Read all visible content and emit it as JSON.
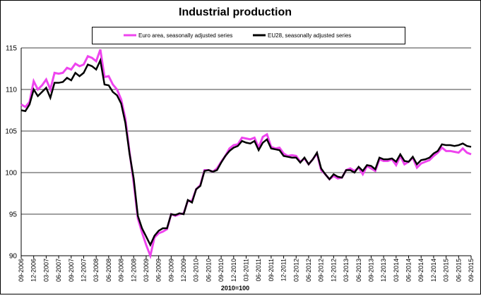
{
  "chart_data": {
    "type": "line",
    "title": "Industrial production",
    "x_label": "2010=100",
    "categories": [
      "09-2006",
      null,
      null,
      "12-2006",
      null,
      null,
      "03-2007",
      null,
      null,
      "06-2007",
      null,
      null,
      "09-2007",
      null,
      null,
      "12-2007",
      null,
      null,
      "03-2008",
      null,
      null,
      "06-2008",
      null,
      null,
      "09-2008",
      null,
      null,
      "12-2008",
      null,
      null,
      "03-2009",
      null,
      null,
      "06-2009",
      null,
      null,
      "09-2009",
      null,
      null,
      "12-2009",
      null,
      null,
      "03-2010",
      null,
      null,
      "06-2010",
      null,
      null,
      "09-2010",
      null,
      null,
      "12-2010",
      null,
      null,
      "03-2011",
      null,
      null,
      "06-2011",
      null,
      null,
      "09-2011",
      null,
      null,
      "12-2011",
      null,
      null,
      "03-2012",
      null,
      null,
      "06-2012",
      null,
      null,
      "09-2012",
      null,
      null,
      "12-2012",
      null,
      null,
      "03-2013",
      null,
      null,
      "06-2013",
      null,
      null,
      "09-2013",
      null,
      null,
      "12-2013",
      null,
      null,
      "03-2014",
      null,
      null,
      "06-2014",
      null,
      null,
      "09-2014",
      null,
      null,
      "12-2014",
      null,
      null,
      "03-2015",
      null,
      null,
      "06-2015",
      null,
      null,
      "09-2015"
    ],
    "series": [
      {
        "name": "Euro area, seasonally adjusted series",
        "color": "#ee44ee",
        "values": [
          108.2,
          107.9,
          108.5,
          111.0,
          110.0,
          110.5,
          111.2,
          110.0,
          112.0,
          111.9,
          112.0,
          112.6,
          112.4,
          113.1,
          112.8,
          113.0,
          114.0,
          113.8,
          113.4,
          114.8,
          111.5,
          111.6,
          110.6,
          110.0,
          108.8,
          106.5,
          102.5,
          98.8,
          94.5,
          92.8,
          91.3,
          90.0,
          92.2,
          92.7,
          92.9,
          93.2,
          95.0,
          94.8,
          95.0,
          95.1,
          96.6,
          96.6,
          98.0,
          98.5,
          100.3,
          100.3,
          100.1,
          100.5,
          101.3,
          102.0,
          102.9,
          103.3,
          103.4,
          104.2,
          104.1,
          104.0,
          104.2,
          103.0,
          104.3,
          104.6,
          103.1,
          102.9,
          103.0,
          102.3,
          102.0,
          102.1,
          102.0,
          101.3,
          101.7,
          101.0,
          101.6,
          102.3,
          100.3,
          99.8,
          99.2,
          99.6,
          99.3,
          99.4,
          100.3,
          100.5,
          100.2,
          100.6,
          99.8,
          100.8,
          100.5,
          100.2,
          101.6,
          101.4,
          101.4,
          101.6,
          100.9,
          102.0,
          101.0,
          101.3,
          101.8,
          100.6,
          101.1,
          101.3,
          101.5,
          102.0,
          102.4,
          103.0,
          102.6,
          102.6,
          102.5,
          102.4,
          102.9,
          102.4,
          102.2
        ]
      },
      {
        "name": "EU28, seasonally adjusted series",
        "color": "#000000",
        "values": [
          107.5,
          107.4,
          108.2,
          110.0,
          109.2,
          109.7,
          110.2,
          109.0,
          110.8,
          110.8,
          110.9,
          111.4,
          111.1,
          112.0,
          111.6,
          112.0,
          113.0,
          112.8,
          112.4,
          113.5,
          110.6,
          110.5,
          109.7,
          109.3,
          108.3,
          106.0,
          102.3,
          99.3,
          94.8,
          93.3,
          92.3,
          91.3,
          92.4,
          93.0,
          93.3,
          93.3,
          95.0,
          94.9,
          95.1,
          95.0,
          96.7,
          96.4,
          98.0,
          98.4,
          100.2,
          100.3,
          100.1,
          100.3,
          101.2,
          102.0,
          102.6,
          103.0,
          103.2,
          103.8,
          103.6,
          103.5,
          103.8,
          102.7,
          103.6,
          104.0,
          102.9,
          102.8,
          102.7,
          102.0,
          101.9,
          101.8,
          101.8,
          101.2,
          101.8,
          101.0,
          101.6,
          102.4,
          100.5,
          99.8,
          99.2,
          99.8,
          99.5,
          99.4,
          100.3,
          100.3,
          100.0,
          100.7,
          100.2,
          100.9,
          100.8,
          100.4,
          101.8,
          101.6,
          101.6,
          101.7,
          101.3,
          102.2,
          101.4,
          101.3,
          101.9,
          101.0,
          101.5,
          101.6,
          101.8,
          102.3,
          102.6,
          103.4,
          103.3,
          103.3,
          103.2,
          103.3,
          103.5,
          103.2,
          103.1
        ]
      }
    ],
    "ylim": [
      90,
      115
    ],
    "yticks": [
      90,
      95,
      100,
      105,
      110,
      115
    ],
    "grid": true
  }
}
